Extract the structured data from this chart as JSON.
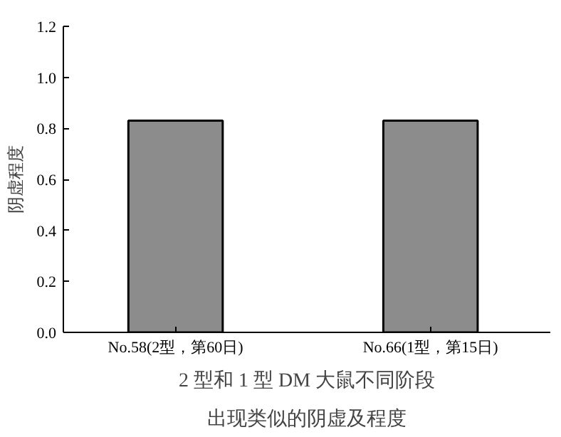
{
  "chart_data": {
    "type": "bar",
    "categories": [
      "No.58(2型，第60日)",
      "No.66(1型，第15日)"
    ],
    "values": [
      0.83,
      0.83
    ],
    "color": "#8c8c8c",
    "ylabel": "阴虚程度",
    "ylim": [
      0,
      1.2
    ],
    "yticks": [
      {
        "value": 0,
        "label": "0.0"
      },
      {
        "value": 0.2,
        "label": "0.2"
      },
      {
        "value": 0.4,
        "label": "0.4"
      },
      {
        "value": 0.6,
        "label": "0.6"
      },
      {
        "value": 0.8,
        "label": "0.8"
      },
      {
        "value": 1.0,
        "label": "1.0"
      },
      {
        "value": 1.2,
        "label": "1.2"
      }
    ],
    "annotations": [
      "2 型和 1 型 DM 大鼠不同阶段",
      "出现类似的阴虚及程度"
    ],
    "grid": false
  }
}
